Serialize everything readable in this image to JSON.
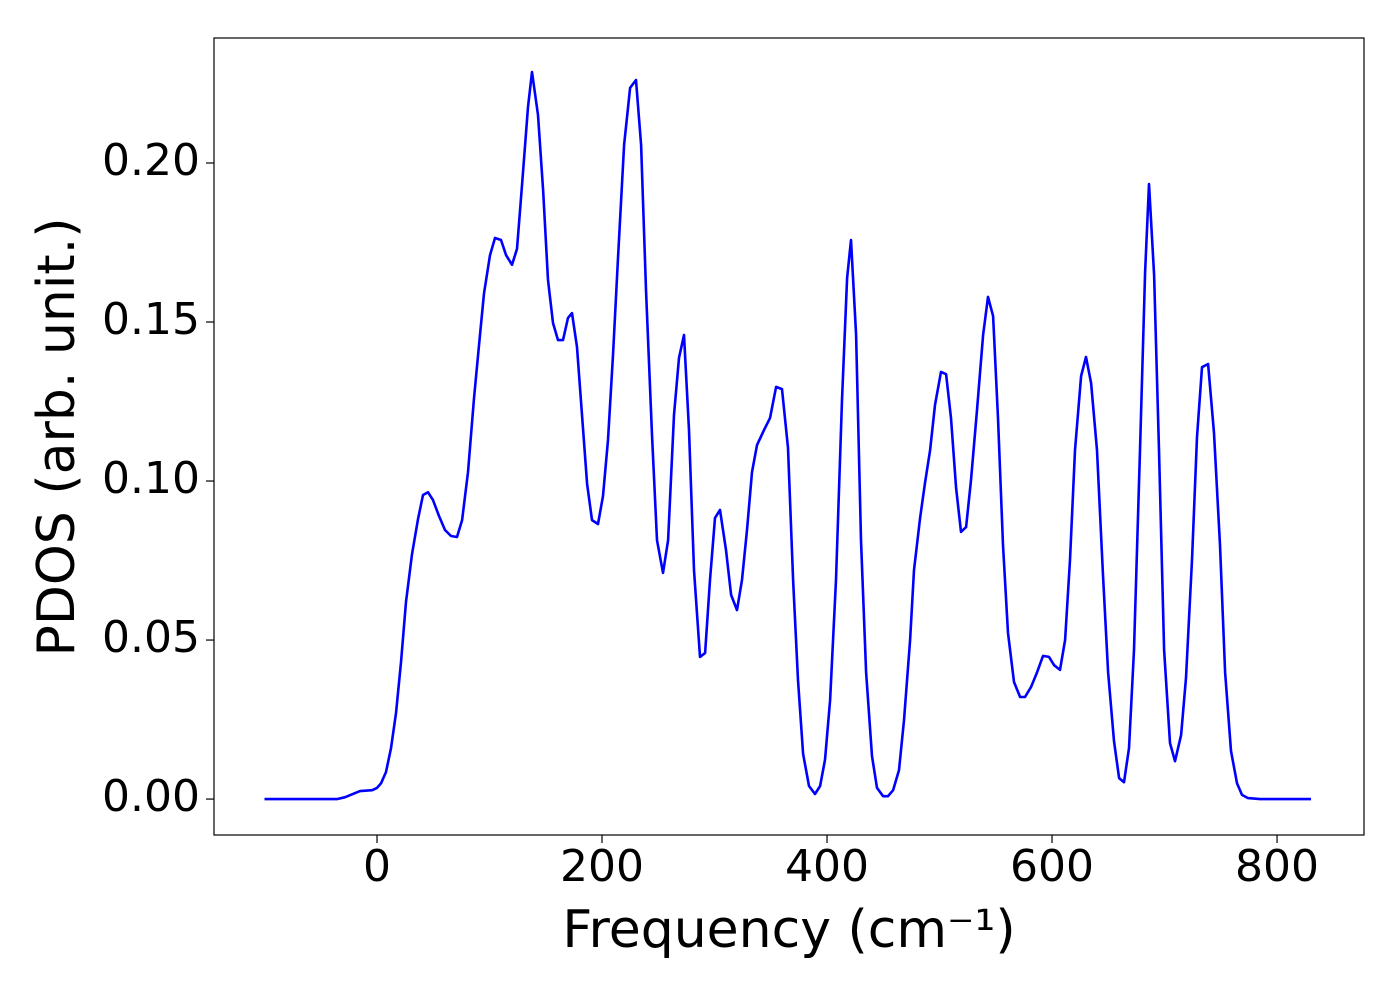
{
  "chart_data": {
    "type": "line",
    "xlabel": "Frequency (cm⁻¹)",
    "ylabel": "PDOS (arb. unit.)",
    "x": [
      -100,
      -35.6,
      -28.4,
      -15.1,
      -4.4,
      0,
      3.6,
      8,
      12.4,
      16.9,
      21.3,
      25.8,
      31.1,
      36.4,
      40.9,
      45.3,
      49.8,
      55.1,
      60.4,
      65.8,
      71.1,
      75.6,
      80.9,
      86.2,
      90.7,
      95.1,
      100.4,
      104.9,
      110.2,
      114.7,
      120,
      124.4,
      128.9,
      134.2,
      137.8,
      143.1,
      147.6,
      152,
      156.4,
      160.9,
      165.3,
      169.8,
      173.3,
      177.8,
      182.2,
      186.7,
      191.1,
      196.4,
      200.9,
      205.3,
      209.8,
      214.2,
      219.6,
      225,
      230.2,
      234.7,
      239.1,
      244.4,
      248.9,
      254.2,
      258.7,
      264,
      268.4,
      272.9,
      277.3,
      281.8,
      287.1,
      291.6,
      296,
      300.4,
      304.9,
      310.2,
      314.7,
      320,
      324.4,
      328.9,
      333.3,
      337.8,
      344,
      349.3,
      354.7,
      360,
      365.3,
      369.8,
      374.2,
      378.7,
      384,
      389.3,
      393.8,
      398.2,
      402.7,
      408,
      413.3,
      417.8,
      421.3,
      425.8,
      430.2,
      434.7,
      440,
      444.4,
      449.8,
      454.2,
      458.7,
      464,
      468.4,
      473.8,
      477.3,
      482.7,
      487.1,
      491.6,
      496,
      501.3,
      505.8,
      510.2,
      514.7,
      519.1,
      523.6,
      528,
      533.3,
      538.7,
      543.1,
      547.6,
      552,
      556.4,
      560.9,
      566.2,
      571.6,
      576,
      581.3,
      586.7,
      592,
      597.3,
      601.8,
      607.1,
      611.6,
      616,
      620.4,
      625.8,
      630.2,
      634.7,
      640,
      645.3,
      649.8,
      655.1,
      659.6,
      664,
      668.4,
      672.9,
      678.2,
      682.7,
      686.2,
      690.7,
      695.1,
      699.6,
      704.9,
      709.3,
      714.7,
      719.1,
      724.4,
      728.9,
      733.3,
      738.7,
      744,
      749.3,
      753.8,
      759.1,
      764.4,
      768.9,
      774.2,
      784.9,
      830.2
    ],
    "series": [
      {
        "color": "#0000ff",
        "values": [
          0,
          0,
          0.0006,
          0.0025,
          0.0028,
          0.0035,
          0.005,
          0.0085,
          0.016,
          0.027,
          0.043,
          0.062,
          0.077,
          0.088,
          0.0956,
          0.0965,
          0.094,
          0.089,
          0.0846,
          0.0827,
          0.0824,
          0.0877,
          0.1028,
          0.126,
          0.143,
          0.159,
          0.171,
          0.1764,
          0.1758,
          0.171,
          0.168,
          0.173,
          0.193,
          0.2176,
          0.2286,
          0.2151,
          0.1915,
          0.1632,
          0.1497,
          0.1443,
          0.1443,
          0.1513,
          0.1528,
          0.1421,
          0.1208,
          0.0991,
          0.0877,
          0.0865,
          0.0953,
          0.1129,
          0.1396,
          0.1701,
          0.2057,
          0.2236,
          0.2261,
          0.2057,
          0.1601,
          0.1145,
          0.0814,
          0.0711,
          0.0814,
          0.1208,
          0.1387,
          0.1459,
          0.116,
          0.072,
          0.0447,
          0.0459,
          0.0689,
          0.0884,
          0.0909,
          0.0783,
          0.0642,
          0.0594,
          0.0689,
          0.0846,
          0.1028,
          0.1113,
          0.116,
          0.1198,
          0.1296,
          0.1289,
          0.1104,
          0.0689,
          0.0374,
          0.0142,
          0.0041,
          0.0016,
          0.0041,
          0.0123,
          0.0311,
          0.0689,
          0.1255,
          0.1638,
          0.1758,
          0.1459,
          0.0814,
          0.0399,
          0.0135,
          0.0035,
          0.0009,
          0.0009,
          0.0028,
          0.0091,
          0.0248,
          0.05,
          0.072,
          0.0884,
          0.0994,
          0.1097,
          0.1239,
          0.1343,
          0.1336,
          0.1198,
          0.0978,
          0.084,
          0.0855,
          0.1003,
          0.1223,
          0.1459,
          0.1579,
          0.1519,
          0.1198,
          0.0799,
          0.0522,
          0.0368,
          0.0321,
          0.0321,
          0.0352,
          0.0399,
          0.045,
          0.0447,
          0.0421,
          0.0406,
          0.05,
          0.0752,
          0.1097,
          0.133,
          0.139,
          0.1308,
          0.1097,
          0.0704,
          0.0399,
          0.0182,
          0.0066,
          0.0053,
          0.016,
          0.0469,
          0.1097,
          0.1657,
          0.1934,
          0.1648,
          0.1097,
          0.0469,
          0.0176,
          0.0119,
          0.0201,
          0.0381,
          0.0752,
          0.1138,
          0.1358,
          0.1368,
          0.1151,
          0.0799,
          0.0399,
          0.0151,
          0.005,
          0.0013,
          0.0003,
          0,
          0
        ]
      }
    ],
    "xlim": [
      -144.9,
      877.3
    ],
    "ylim": [
      -0.0113,
      0.2393
    ],
    "xticks": [
      0,
      200,
      400,
      600,
      800
    ],
    "yticks": [
      {
        "value": 0,
        "label": "0.00"
      },
      0.05,
      {
        "value": 0.1,
        "label": "0.10"
      },
      0.15,
      {
        "value": 0.2,
        "label": "0.20"
      }
    ]
  }
}
